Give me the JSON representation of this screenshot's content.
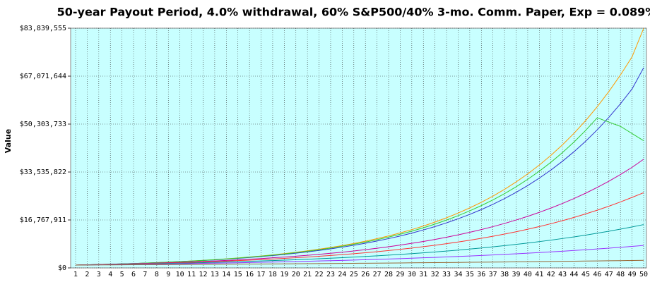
{
  "chart_data": {
    "type": "line",
    "title": "50-year Payout Period, 4.0% withdrawal, 60% S&P500/40% 3-mo. Comm. Paper,  Exp = 0.089%",
    "y_label": "Value",
    "categories": [
      1,
      2,
      3,
      4,
      5,
      6,
      7,
      8,
      9,
      10,
      11,
      12,
      13,
      14,
      15,
      16,
      17,
      18,
      19,
      20,
      21,
      22,
      23,
      24,
      25,
      26,
      27,
      28,
      29,
      30,
      31,
      32,
      33,
      34,
      35,
      36,
      37,
      38,
      39,
      40,
      41,
      42,
      43,
      44,
      45,
      46,
      47,
      48,
      49,
      50
    ],
    "ylim": [
      0,
      83839555
    ],
    "yticks": [
      {
        "value": 0,
        "label": "$0"
      },
      {
        "value": 16767911,
        "label": "$16,767,911"
      },
      {
        "value": 33535822,
        "label": "$33,535,822"
      },
      {
        "value": 50303733,
        "label": "$50,303,733"
      },
      {
        "value": 67071644,
        "label": "$67,071,644"
      },
      {
        "value": 83839555,
        "label": "$83,839,555"
      }
    ],
    "grid": true,
    "background": "#c8ffff",
    "series": [
      {
        "color": "#ff9900",
        "values": [
          1000000.0,
          1090000.0,
          1190000.0,
          1310000.0,
          1430000.0,
          1550000.0,
          1700000.0,
          1860000.0,
          2030000.0,
          2220000.0,
          2430000.0,
          2660000.0,
          2910000.0,
          3180000.0,
          3480000.0,
          3810000.0,
          4170000.0,
          4560000.0,
          4990000.0,
          5460000.0,
          5970000.0,
          6530000.0,
          7140000.0,
          7810000.0,
          8550000.0,
          9350000.0,
          10230000.0,
          11190000.0,
          12240000.0,
          13390000.0,
          14650000.0,
          16030000.0,
          17540000.0,
          19190000.0,
          20990000.0,
          22960000.0,
          25120000.0,
          27480000.0,
          30060000.0,
          32890000.0,
          35980000.0,
          39360000.0,
          43060000.0,
          47110000.0,
          51540000.0,
          56380000.0,
          61680000.0,
          67480000.0,
          73820000.0,
          83800000.0
        ]
      },
      {
        "color": "#3333cc",
        "values": [
          1000000.0,
          1090000.0,
          1190000.0,
          1300000.0,
          1410000.0,
          1540000.0,
          1680000.0,
          1830000.0,
          1990000.0,
          2170000.0,
          2370000.0,
          2580000.0,
          2810000.0,
          3070000.0,
          3340000.0,
          3640000.0,
          3970000.0,
          4330000.0,
          4720000.0,
          5140000.0,
          5600000.0,
          6110000.0,
          6660000.0,
          7260000.0,
          7910000.0,
          8620000.0,
          9400000.0,
          10250000.0,
          11170000.0,
          12170000.0,
          13270000.0,
          14460000.0,
          15760000.0,
          17180000.0,
          18730000.0,
          20410000.0,
          22250000.0,
          24250000.0,
          26430000.0,
          28810000.0,
          31410000.0,
          34230000.0,
          37310000.0,
          40670000.0,
          44330000.0,
          48320000.0,
          52670000.0,
          57410000.0,
          62580000.0,
          70000000.0
        ]
      },
      {
        "color": "#33cc33",
        "values": [
          1000000.0,
          1090000.0,
          1190000.0,
          1300000.0,
          1420000.0,
          1550000.0,
          1690000.0,
          1850000.0,
          2020000.0,
          2210000.0,
          2410000.0,
          2630000.0,
          2880000.0,
          3140000.0,
          3430000.0,
          3750000.0,
          4090000.0,
          4470000.0,
          4880000.0,
          5330000.0,
          5820000.0,
          6360000.0,
          6940000.0,
          7580000.0,
          8280000.0,
          9040000.0,
          9870000.0,
          10780000.0,
          11770000.0,
          12850000.0,
          14030000.0,
          15320000.0,
          16730000.0,
          18270000.0,
          19950000.0,
          21790000.0,
          23790000.0,
          25980000.0,
          28370000.0,
          30980000.0,
          33830000.0,
          36940000.0,
          40340000.0,
          44050000.0,
          48100000.0,
          52500000.0,
          51000000.0,
          49500000.0,
          47000000.0,
          44500000.0
        ]
      },
      {
        "color": "#cc0099",
        "values": [
          1000000.0,
          1080000.0,
          1160000.0,
          1250000.0,
          1350000.0,
          1450000.0,
          1560000.0,
          1680000.0,
          1810000.0,
          1950000.0,
          2100000.0,
          2260000.0,
          2430000.0,
          2620000.0,
          2820000.0,
          3040000.0,
          3270000.0,
          3530000.0,
          3800000.0,
          4090000.0,
          4410000.0,
          4740000.0,
          5110000.0,
          5500000.0,
          5930000.0,
          6380000.0,
          6870000.0,
          7400000.0,
          7970000.0,
          8590000.0,
          9250000.0,
          9960000.0,
          10730000.0,
          11560000.0,
          12450000.0,
          13410000.0,
          14440000.0,
          15550000.0,
          16750000.0,
          18040000.0,
          19430000.0,
          20930000.0,
          22540000.0,
          24270000.0,
          26140000.0,
          28160000.0,
          30320000.0,
          32660000.0,
          35170000.0,
          38000000.0
        ]
      },
      {
        "color": "#ff3333",
        "values": [
          1000000.0,
          1070000.0,
          1140000.0,
          1220000.0,
          1310000.0,
          1400000.0,
          1490000.0,
          1600000.0,
          1710000.0,
          1820000.0,
          1950000.0,
          2080000.0,
          2230000.0,
          2380000.0,
          2550000.0,
          2720000.0,
          2910000.0,
          3110000.0,
          3330000.0,
          3560000.0,
          3800000.0,
          4070000.0,
          4350000.0,
          4650000.0,
          4970000.0,
          5310000.0,
          5680000.0,
          6070000.0,
          6490000.0,
          6940000.0,
          7420000.0,
          7930000.0,
          8480000.0,
          9060000.0,
          9690000.0,
          10360000.0,
          11070000.0,
          11840000.0,
          12650000.0,
          13530000.0,
          14460000.0,
          15460000.0,
          16530000.0,
          17670000.0,
          18890000.0,
          20190000.0,
          21580000.0,
          23070000.0,
          24660000.0,
          26300000.0
        ]
      },
      {
        "color": "#009999",
        "values": [
          1000000.0,
          1060000.0,
          1120000.0,
          1180000.0,
          1250000.0,
          1320000.0,
          1390000.0,
          1470000.0,
          1560000.0,
          1650000.0,
          1740000.0,
          1840000.0,
          1950000.0,
          2060000.0,
          2170000.0,
          2300000.0,
          2430000.0,
          2570000.0,
          2710000.0,
          2870000.0,
          3030000.0,
          3200000.0,
          3390000.0,
          3580000.0,
          3790000.0,
          4000000.0,
          4230000.0,
          4470000.0,
          4730000.0,
          5000000.0,
          5280000.0,
          5580000.0,
          5900000.0,
          6240000.0,
          6590000.0,
          6970000.0,
          7370000.0,
          7790000.0,
          8230000.0,
          8700000.0,
          9200000.0,
          9720000.0,
          10280000.0,
          10860000.0,
          11480000.0,
          12140000.0,
          12830000.0,
          13560000.0,
          14330000.0,
          15150000.0
        ]
      },
      {
        "color": "#9933ff",
        "values": [
          1000000.0,
          1040000.0,
          1090000.0,
          1130000.0,
          1180000.0,
          1230000.0,
          1290000.0,
          1340000.0,
          1400000.0,
          1460000.0,
          1520000.0,
          1590000.0,
          1660000.0,
          1730000.0,
          1800000.0,
          1880000.0,
          1960000.0,
          2040000.0,
          2130000.0,
          2220000.0,
          2320000.0,
          2420000.0,
          2520000.0,
          2630000.0,
          2740000.0,
          2860000.0,
          2980000.0,
          3110000.0,
          3240000.0,
          3380000.0,
          3530000.0,
          3680000.0,
          3840000.0,
          4000000.0,
          4170000.0,
          4350000.0,
          4540000.0,
          4740000.0,
          4940000.0,
          5150000.0,
          5370000.0,
          5600000.0,
          5840000.0,
          6090000.0,
          6360000.0,
          6630000.0,
          6910000.0,
          7210000.0,
          7520000.0,
          7850000.0
        ]
      },
      {
        "color": "#996633",
        "values": [
          1000000.0,
          1020000.0,
          1040000.0,
          1060000.0,
          1080000.0,
          1100000.0,
          1130000.0,
          1150000.0,
          1170000.0,
          1200000.0,
          1220000.0,
          1240000.0,
          1270000.0,
          1290000.0,
          1320000.0,
          1350000.0,
          1370000.0,
          1400000.0,
          1430000.0,
          1460000.0,
          1490000.0,
          1520000.0,
          1550000.0,
          1580000.0,
          1610000.0,
          1640000.0,
          1670000.0,
          1710000.0,
          1740000.0,
          1780000.0,
          1810000.0,
          1850000.0,
          1880000.0,
          1920000.0,
          1960000.0,
          2000000.0,
          2040000.0,
          2080000.0,
          2120000.0,
          2160000.0,
          2210000.0,
          2250000.0,
          2300000.0,
          2340000.0,
          2390000.0,
          2440000.0,
          2490000.0,
          2540000.0,
          2590000.0,
          2640000.0
        ]
      }
    ]
  }
}
